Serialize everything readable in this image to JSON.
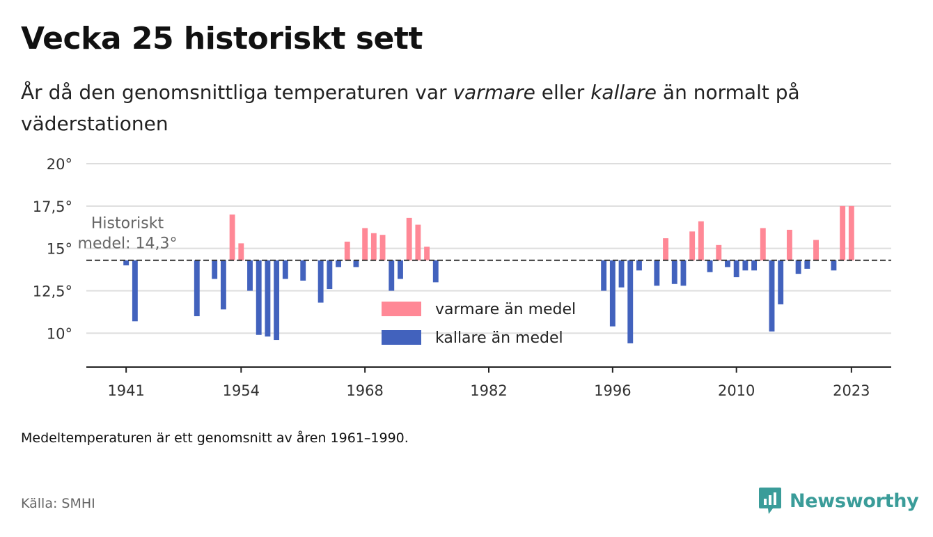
{
  "header": {
    "title": "Vecka 25 historiskt sett",
    "subtitle_start": "År då den genomsnittliga temperaturen var ",
    "subtitle_warm": "varmare",
    "subtitle_mid": " eller ",
    "subtitle_cold": "kallare",
    "subtitle_end": " än normalt på väderstationen"
  },
  "chart_data": {
    "type": "bar",
    "baseline": 14.3,
    "baseline_label_line1": "Historiskt",
    "baseline_label_line2": "medel: 14,3°",
    "ylim": [
      8,
      20
    ],
    "xlim": [
      1936.5,
      2027.5
    ],
    "y_ticks": [
      {
        "value": 10,
        "label": "10°"
      },
      {
        "value": 12.5,
        "label": "12,5°"
      },
      {
        "value": 15,
        "label": "15°"
      },
      {
        "value": 17.5,
        "label": "17,5°"
      },
      {
        "value": 20,
        "label": "20°"
      }
    ],
    "x_ticks": [
      {
        "value": 1941,
        "label": "1941"
      },
      {
        "value": 1954,
        "label": "1954"
      },
      {
        "value": 1968,
        "label": "1968"
      },
      {
        "value": 1982,
        "label": "1982"
      },
      {
        "value": 1996,
        "label": "1996"
      },
      {
        "value": 2010,
        "label": "2010"
      },
      {
        "value": 2023,
        "label": "2023"
      }
    ],
    "colors": {
      "warm": "#ff8896",
      "cold": "#4262bd",
      "baseline": "#333333",
      "grid": "#dddddd",
      "axis": "#222222"
    },
    "legend": [
      {
        "key": "warm",
        "label": "varmare än medel"
      },
      {
        "key": "cold",
        "label": "kallare än medel"
      }
    ],
    "points": [
      [
        1941,
        14.0
      ],
      [
        1942,
        10.7
      ],
      [
        1949,
        11.0
      ],
      [
        1951,
        13.2
      ],
      [
        1952,
        11.4
      ],
      [
        1953,
        17.0
      ],
      [
        1954,
        15.3
      ],
      [
        1955,
        12.5
      ],
      [
        1956,
        9.9
      ],
      [
        1957,
        9.8
      ],
      [
        1958,
        9.6
      ],
      [
        1959,
        13.2
      ],
      [
        1961,
        13.1
      ],
      [
        1963,
        11.8
      ],
      [
        1964,
        12.6
      ],
      [
        1965,
        13.9
      ],
      [
        1966,
        15.4
      ],
      [
        1967,
        13.9
      ],
      [
        1968,
        16.2
      ],
      [
        1969,
        15.9
      ],
      [
        1970,
        15.8
      ],
      [
        1971,
        12.5
      ],
      [
        1972,
        13.2
      ],
      [
        1973,
        16.8
      ],
      [
        1974,
        16.4
      ],
      [
        1975,
        15.1
      ],
      [
        1976,
        13.0
      ],
      [
        1995,
        12.5
      ],
      [
        1996,
        10.4
      ],
      [
        1997,
        12.7
      ],
      [
        1998,
        9.4
      ],
      [
        1999,
        13.7
      ],
      [
        2001,
        12.8
      ],
      [
        2002,
        15.6
      ],
      [
        2003,
        12.9
      ],
      [
        2004,
        12.8
      ],
      [
        2005,
        16.0
      ],
      [
        2006,
        16.6
      ],
      [
        2007,
        13.6
      ],
      [
        2008,
        15.2
      ],
      [
        2009,
        13.9
      ],
      [
        2010,
        13.3
      ],
      [
        2011,
        13.7
      ],
      [
        2012,
        13.7
      ],
      [
        2013,
        16.2
      ],
      [
        2014,
        10.1
      ],
      [
        2015,
        11.7
      ],
      [
        2016,
        16.1
      ],
      [
        2017,
        13.5
      ],
      [
        2018,
        13.8
      ],
      [
        2019,
        15.5
      ],
      [
        2021,
        13.7
      ],
      [
        2022,
        17.5
      ],
      [
        2023,
        17.5
      ]
    ]
  },
  "footer": {
    "note": "Medeltemperaturen är ett genomsnitt av åren 1961–1990.",
    "source": "Källa: SMHI",
    "brand": "Newsworthy",
    "brand_color": "#3a9c99"
  }
}
